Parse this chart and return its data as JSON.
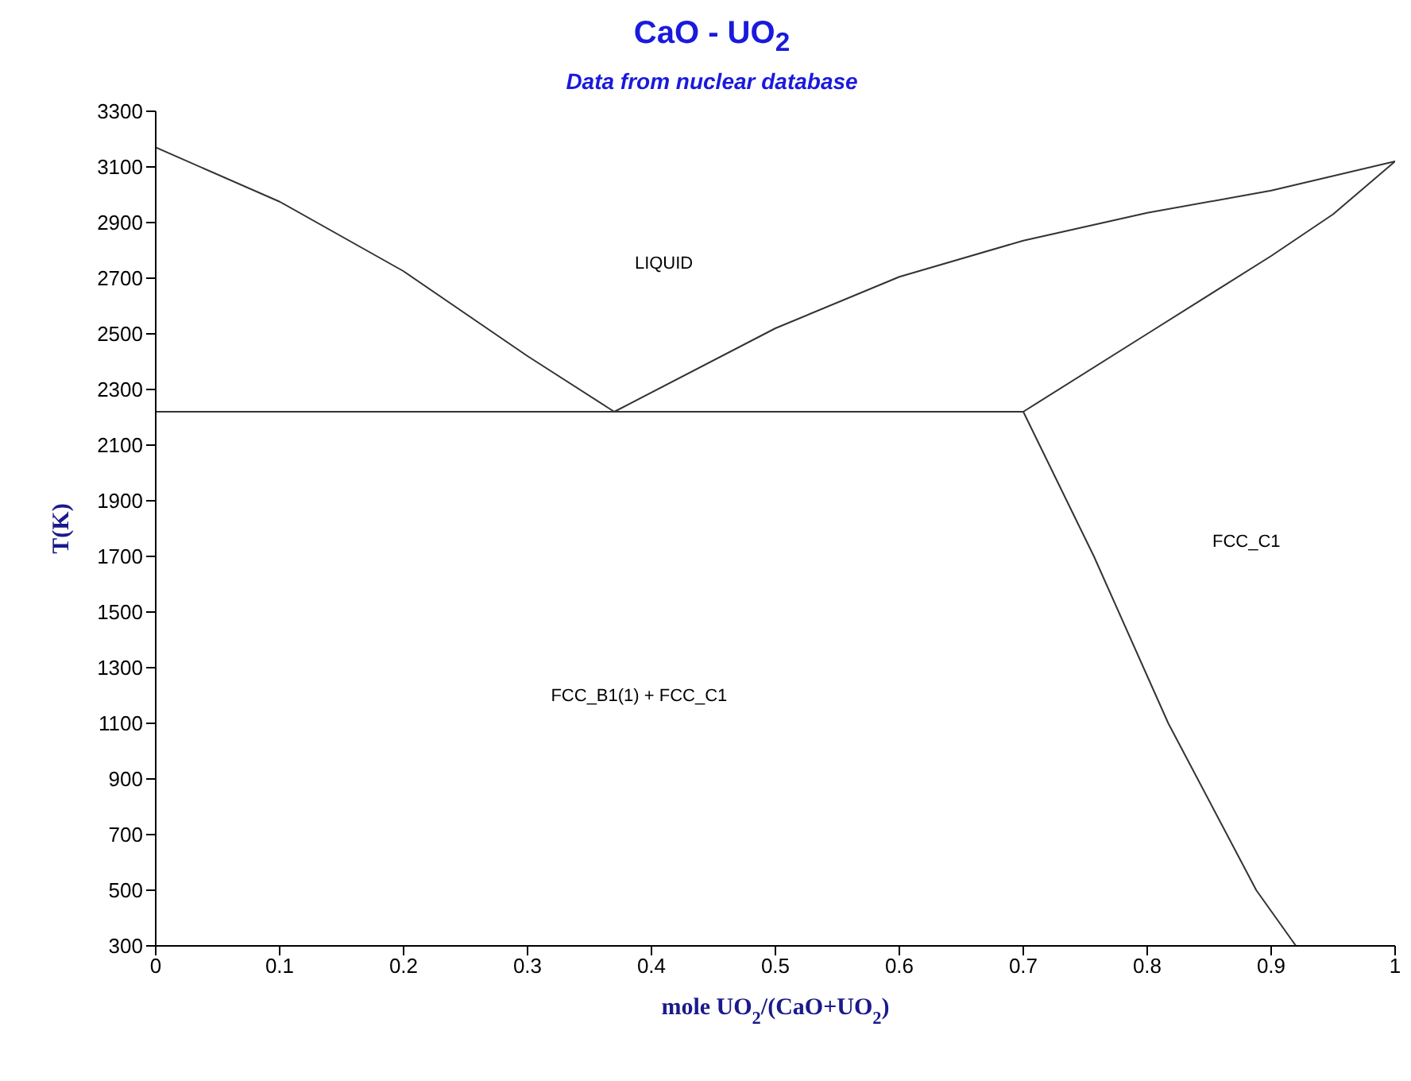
{
  "chart_data": {
    "type": "line",
    "title": "CaO - UO$_{2}$",
    "subtitle": "Data from nuclear database",
    "xlabel": "mole UO$_{2}$/(CaO+UO$_{2}$)",
    "ylabel": "T(K)",
    "xlim": [
      0,
      1
    ],
    "xticks": [
      0,
      0.1,
      0.2,
      0.3,
      0.4,
      0.5,
      0.6,
      0.7,
      0.8,
      0.9,
      1
    ],
    "ylim": [
      300,
      3300
    ],
    "yticks": [
      300,
      500,
      700,
      900,
      1100,
      1300,
      1500,
      1700,
      1900,
      2100,
      2300,
      2500,
      2700,
      2900,
      3100,
      3300
    ],
    "marker": "none",
    "line_style": "solid",
    "series": [
      {
        "color": "#333333",
        "x": [
          0,
          0.1,
          0.2,
          0.3,
          0.37
        ],
        "values": [
          3170,
          2975,
          2725,
          2420,
          2220
        ]
      },
      {
        "color": "#333333",
        "x": [
          0.37,
          0.5,
          0.6,
          0.7,
          0.8,
          0.9,
          1
        ],
        "values": [
          2220,
          2520,
          2705,
          2835,
          2935,
          3015,
          3120
        ]
      },
      {
        "color": "#333333",
        "x": [
          0.7,
          0.8,
          0.9,
          0.95,
          1
        ],
        "values": [
          2220,
          2500,
          2780,
          2930,
          3120
        ]
      },
      {
        "color": "#333333",
        "x": [
          0.7,
          0.757,
          0.817,
          0.888,
          0.92
        ],
        "values": [
          2220,
          1700,
          1100,
          500,
          300
        ]
      },
      {
        "color": "#333333",
        "x": [
          0,
          0.7
        ],
        "values": [
          2220,
          2220
        ]
      }
    ],
    "annotations": [
      "LIQUID",
      "FCC_C1",
      "FCC_B1(1) + FCC_C1"
    ]
  }
}
